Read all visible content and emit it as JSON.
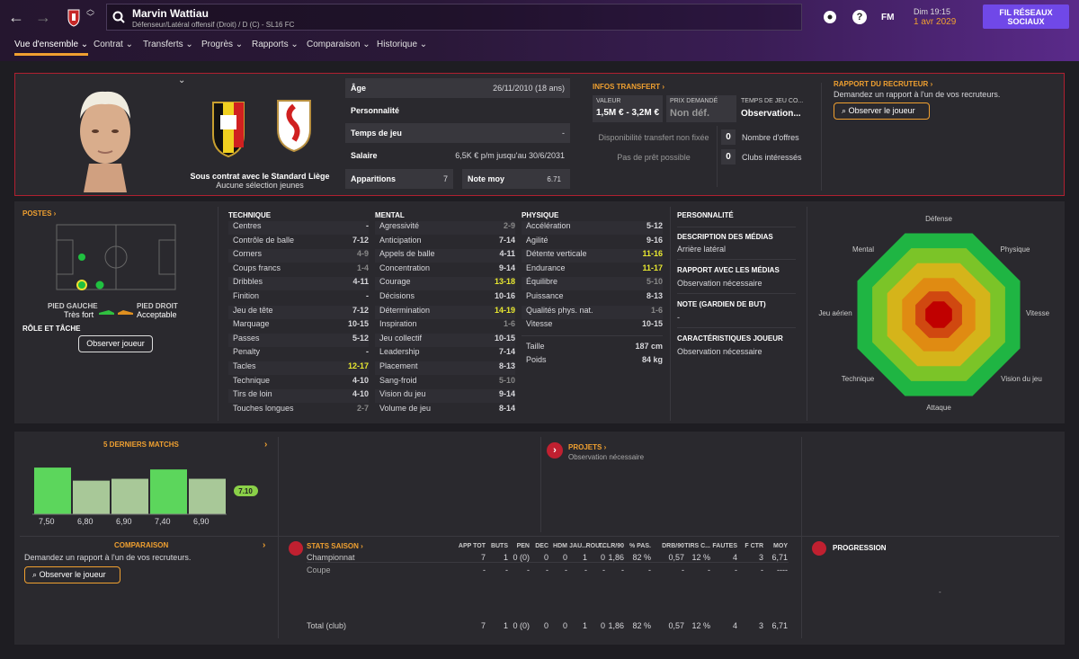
{
  "header": {
    "player_name": "Marvin Wattiau",
    "player_sub": "Défenseur/Latéral offensif (Droit) / D (C) - SL16 FC",
    "time": "Dim 19:15",
    "date": "1 avr 2029",
    "fm": "FM",
    "social": "FIL RÉSEAUX SOCIAUX"
  },
  "menu": [
    "Vue d'ensemble",
    "Contrat",
    "Transferts",
    "Progrès",
    "Rapports",
    "Comparaison",
    "Historique"
  ],
  "profile": {
    "contract": "Sous contrat avec le Standard Liège",
    "youth": "Aucune sélection jeunes"
  },
  "info": {
    "age_l": "Âge",
    "age_v": "26/11/2010 (18 ans)",
    "pers_l": "Personnalité",
    "time_l": "Temps de jeu",
    "time_v": "-",
    "sal_l": "Salaire",
    "sal_v": "6,5K € p/m jusqu'au 30/6/2031",
    "app_l": "Apparitions",
    "app_v": "7",
    "note_l": "Note moy",
    "note_v": "6.71"
  },
  "transfer": {
    "title": "INFOS TRANSFERT",
    "val_l": "VALEUR",
    "val_v": "1,5M € - 3,2M €",
    "ask_l": "PRIX DEMANDÉ",
    "ask_v": "Non déf.",
    "time_l": "TEMPS DE JEU CO...",
    "time_v": "Observation...",
    "avail": "Disponibilité transfert non fixée",
    "loan": "Pas de prêt possible",
    "offers_n": "0",
    "offers_l": "Nombre d'offres",
    "clubs_n": "0",
    "clubs_l": "Clubs intéressés"
  },
  "scout": {
    "title": "RAPPORT DU RECRUTEUR",
    "desc": "Demandez un rapport à l'un de vos recruteurs.",
    "btn": "Observer le joueur"
  },
  "positions": {
    "title": "POSTES",
    "left_l": "PIED GAUCHE",
    "left_v": "Très fort",
    "right_l": "PIED DROIT",
    "right_v": "Acceptable",
    "role": "RÔLE ET TÂCHE",
    "btn": "Observer joueur"
  },
  "attrs": {
    "technique_title": "TECHNIQUE",
    "technique": [
      [
        "Centres",
        "-"
      ],
      [
        "Contrôle de balle",
        "7-12"
      ],
      [
        "Corners",
        "4-9"
      ],
      [
        "Coups francs",
        "1-4"
      ],
      [
        "Dribbles",
        "4-11"
      ],
      [
        "Finition",
        "-"
      ],
      [
        "Jeu de tête",
        "7-12"
      ],
      [
        "Marquage",
        "10-15"
      ],
      [
        "Passes",
        "5-12"
      ],
      [
        "Penalty",
        "-"
      ],
      [
        "Tacles",
        "12-17"
      ],
      [
        "Technique",
        "4-10"
      ],
      [
        "Tirs de loin",
        "4-10"
      ],
      [
        "Touches longues",
        "2-7"
      ]
    ],
    "mental_title": "MENTAL",
    "mental": [
      [
        "Agressivité",
        "2-9"
      ],
      [
        "Anticipation",
        "7-14"
      ],
      [
        "Appels de balle",
        "4-11"
      ],
      [
        "Concentration",
        "9-14"
      ],
      [
        "Courage",
        "13-18"
      ],
      [
        "Décisions",
        "10-16"
      ],
      [
        "Détermination",
        "14-19"
      ],
      [
        "Inspiration",
        "1-6"
      ],
      [
        "Jeu collectif",
        "10-15"
      ],
      [
        "Leadership",
        "7-14"
      ],
      [
        "Placement",
        "8-13"
      ],
      [
        "Sang-froid",
        "5-10"
      ],
      [
        "Vision du jeu",
        "9-14"
      ],
      [
        "Volume de jeu",
        "8-14"
      ]
    ],
    "physique_title": "PHYSIQUE",
    "physique": [
      [
        "Accélération",
        "5-12"
      ],
      [
        "Agilité",
        "9-16"
      ],
      [
        "Détente verticale",
        "11-16"
      ],
      [
        "Endurance",
        "11-17"
      ],
      [
        "Équilibre",
        "5-10"
      ],
      [
        "Puissance",
        "8-13"
      ],
      [
        "Qualités phys. nat.",
        "1-6"
      ],
      [
        "Vitesse",
        "10-15"
      ]
    ],
    "taille_l": "Taille",
    "taille_v": "187 cm",
    "poids_l": "Poids",
    "poids_v": "84 kg"
  },
  "personality": {
    "title": "PERSONNALITÉ",
    "media_l": "DESCRIPTION DES MÉDIAS",
    "media_v": "Arrière latéral",
    "rel_l": "RAPPORT AVEC LES MÉDIAS",
    "rel_v": "Observation nécessaire",
    "gk_l": "NOTE (GARDIEN DE BUT)",
    "gk_v": "-",
    "car_l": "CARACTÉRISTIQUES JOUEUR",
    "car_v": "Observation nécessaire"
  },
  "radar": {
    "labels": [
      "Défense",
      "Physique",
      "Vitesse",
      "Vision du jeu",
      "Attaque",
      "Technique",
      "Jeu aérien",
      "Mental"
    ]
  },
  "matches": {
    "title": "5 DERNIERS MATCHS",
    "values": [
      7.5,
      6.8,
      6.9,
      7.4,
      6.9
    ],
    "labels": [
      "7,50",
      "6,80",
      "6,90",
      "7,40",
      "6,90"
    ],
    "avg": "7.10"
  },
  "projects": {
    "title": "PROJETS",
    "desc": "Observation nécessaire"
  },
  "comparison": {
    "title": "COMPARAISON",
    "desc": "Demandez un rapport à l'un de vos recruteurs.",
    "btn": "Observer le joueur"
  },
  "season": {
    "title": "STATS SAISON",
    "cols": [
      "APP TOT",
      "BUTS",
      "PEN",
      "DÉC",
      "HDM",
      "JAU...",
      "ROU...",
      "TCLR/90",
      "% PAS.",
      "DRB/90",
      "TIRS C...",
      "FAUTES",
      "F CTR",
      "MOY"
    ],
    "rows": [
      [
        "Championnat",
        "7",
        "1",
        "0 (0)",
        "0",
        "0",
        "1",
        "0",
        "1,86",
        "82 %",
        "0,57",
        "12 %",
        "4",
        "3",
        "6,71"
      ],
      [
        "Coupe",
        "-",
        "-",
        "-",
        "-",
        "-",
        "-",
        "-",
        "-",
        "-",
        "-",
        "-",
        "-",
        "-",
        "----"
      ],
      [
        "Total (club)",
        "7",
        "1",
        "0 (0)",
        "0",
        "0",
        "1",
        "0",
        "1,86",
        "82 %",
        "0,57",
        "12 %",
        "4",
        "3",
        "6,71"
      ]
    ]
  },
  "progression": {
    "title": "PROGRESSION",
    "dash": "-"
  },
  "colors": {
    "accent": "#f0a030",
    "green": "#5cd65c",
    "radar_out": "#20b040",
    "radar_mid": "#e0a010",
    "radar_center": "#c00000"
  }
}
